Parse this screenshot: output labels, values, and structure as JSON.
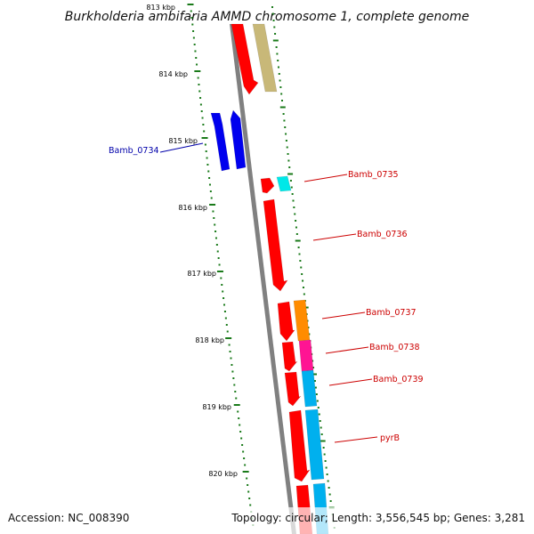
{
  "title": "Burkholderia ambifaria AMMD chromosome 1, complete genome",
  "footer": {
    "accession": "Accession: NC_008390",
    "topology": "Topology: circular; Length: 3,556,545 bp; Genes: 3,281"
  },
  "scale_labels": [
    "813 kbp",
    "814 kbp",
    "815 kbp",
    "816 kbp",
    "817 kbp",
    "818 kbp",
    "819 kbp",
    "820 kbp"
  ],
  "gene_labels": [
    {
      "text": "Bamb_0734",
      "color": "#0000aa"
    },
    {
      "text": "Bamb_0735",
      "color": "#cc0000"
    },
    {
      "text": "Bamb_0736",
      "color": "#cc0000"
    },
    {
      "text": "Bamb_0737",
      "color": "#cc0000"
    },
    {
      "text": "Bamb_0738",
      "color": "#cc0000"
    },
    {
      "text": "Bamb_0739",
      "color": "#cc0000"
    },
    {
      "text": "pyrB",
      "color": "#cc0000"
    }
  ],
  "colors": {
    "backbone": "#808080",
    "red": "#ff0000",
    "blue": "#0000ee",
    "olive": "#c8b878",
    "cyan": "#00e8e8",
    "orange": "#ff8c00",
    "magenta": "#ff1493",
    "skyblue": "#00b0ee",
    "tick_green": "#1a7a1a"
  }
}
